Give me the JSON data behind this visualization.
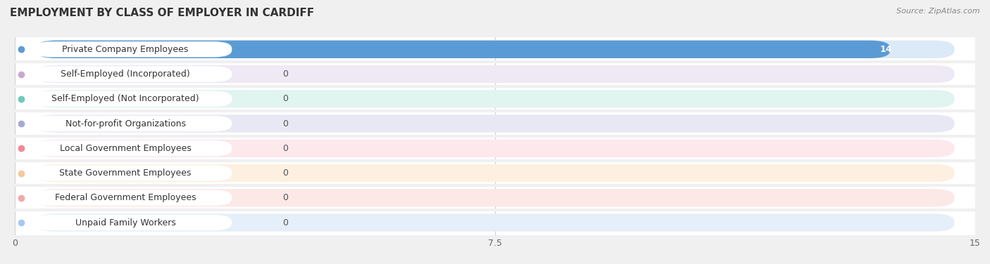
{
  "title": "EMPLOYMENT BY CLASS OF EMPLOYER IN CARDIFF",
  "source": "Source: ZipAtlas.com",
  "categories": [
    "Private Company Employees",
    "Self-Employed (Incorporated)",
    "Self-Employed (Not Incorporated)",
    "Not-for-profit Organizations",
    "Local Government Employees",
    "State Government Employees",
    "Federal Government Employees",
    "Unpaid Family Workers"
  ],
  "values": [
    14,
    0,
    0,
    0,
    0,
    0,
    0,
    0
  ],
  "bar_colors": [
    "#5b9bd5",
    "#c9a8d4",
    "#6fcbb8",
    "#a8a8d8",
    "#f4889a",
    "#f7c89a",
    "#f4a8a8",
    "#a8c8f0"
  ],
  "bar_bg_colors": [
    "#dce9f7",
    "#efe8f5",
    "#e0f4f0",
    "#e8e8f5",
    "#fde8ec",
    "#fdf0e0",
    "#fde8e8",
    "#e4eff9"
  ],
  "xlim": [
    0,
    15
  ],
  "xticks": [
    0,
    7.5,
    15
  ],
  "title_fontsize": 11,
  "label_fontsize": 9,
  "value_fontsize": 9,
  "background_color": "#f0f0f0",
  "row_bg_color": "#e8e8e8"
}
